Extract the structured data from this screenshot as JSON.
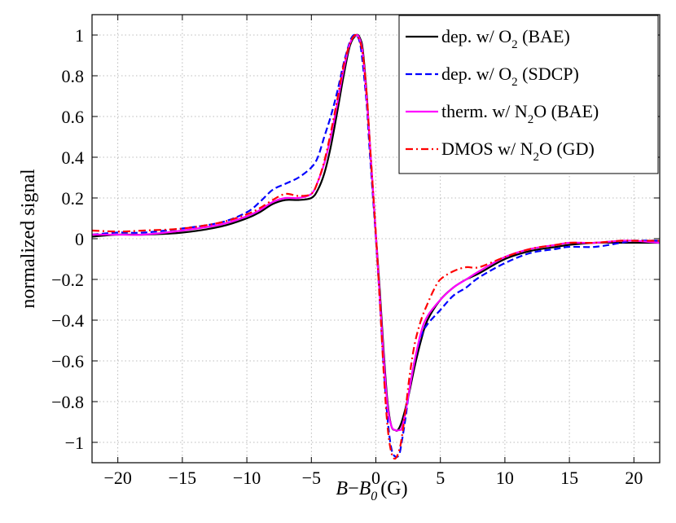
{
  "chart_data": {
    "type": "line",
    "xlabel": {
      "italic_main": "B",
      "minus": "−",
      "italic_base": "B",
      "italic_sub": "0",
      "unit": "(G)"
    },
    "ylabel": "normalized signal",
    "xlim": [
      -22,
      22
    ],
    "ylim": [
      -1.1,
      1.1
    ],
    "xticks": [
      -20,
      -15,
      -10,
      -5,
      0,
      5,
      10,
      15,
      20
    ],
    "xtick_labels": [
      "−20",
      "−15",
      "−10",
      "−5",
      "0",
      "5",
      "10",
      "15",
      "20"
    ],
    "yticks": [
      -1,
      -0.8,
      -0.6,
      -0.4,
      -0.2,
      0,
      0.2,
      0.4,
      0.6,
      0.8,
      1
    ],
    "ytick_labels": [
      "−1",
      "−0.8",
      "−0.6",
      "−0.4",
      "−0.2",
      "0",
      "0.2",
      "0.4",
      "0.6",
      "0.8",
      "1"
    ],
    "grid": true,
    "legend_position": "top-right",
    "series": [
      {
        "name": "dep. w/ O2 (BAE)",
        "legend": {
          "pre": "dep. w/ O",
          "sub": "2",
          "post": " (BAE)"
        },
        "color": "#000000",
        "dash": "solid",
        "x": [
          -22,
          -20,
          -18,
          -15,
          -12,
          -10,
          -9,
          -8,
          -7,
          -6,
          -5,
          -4.5,
          -4,
          -3.5,
          -3,
          -2.5,
          -2,
          -1.5,
          -1.2,
          -1,
          -0.7,
          -0.5,
          0,
          0.3,
          0.6,
          0.9,
          1.2,
          1.5,
          1.7,
          2,
          2.5,
          3,
          3.5,
          4,
          5,
          6,
          7,
          8,
          10,
          12,
          14,
          15,
          17,
          19,
          20,
          22
        ],
        "y": [
          0.01,
          0.02,
          0.02,
          0.03,
          0.06,
          0.1,
          0.13,
          0.17,
          0.19,
          0.19,
          0.2,
          0.24,
          0.32,
          0.45,
          0.62,
          0.8,
          0.95,
          1.0,
          0.98,
          0.92,
          0.7,
          0.5,
          0.02,
          -0.25,
          -0.55,
          -0.8,
          -0.92,
          -0.94,
          -0.94,
          -0.9,
          -0.78,
          -0.63,
          -0.5,
          -0.4,
          -0.3,
          -0.24,
          -0.2,
          -0.17,
          -0.1,
          -0.06,
          -0.04,
          -0.03,
          -0.02,
          -0.02,
          -0.02,
          -0.02
        ]
      },
      {
        "name": "dep. w/ O2 (SDCP)",
        "legend": {
          "pre": "dep. w/ O",
          "sub": "2",
          "post": " (SDCP)"
        },
        "color": "#0000ff",
        "dash": "dashed",
        "x": [
          -22,
          -20,
          -18,
          -15,
          -12,
          -10,
          -9,
          -8,
          -7,
          -6,
          -5,
          -4.5,
          -4,
          -3.5,
          -3,
          -2.5,
          -2,
          -1.7,
          -1.4,
          -1.2,
          -1,
          -0.7,
          -0.5,
          0,
          0.3,
          0.6,
          0.9,
          1.2,
          1.5,
          1.8,
          2,
          2.3,
          2.6,
          3,
          3.5,
          4,
          5,
          6,
          7,
          8,
          10,
          12,
          14,
          15,
          17,
          19,
          20,
          22
        ],
        "y": [
          0.02,
          0.03,
          0.03,
          0.05,
          0.08,
          0.13,
          0.18,
          0.24,
          0.27,
          0.3,
          0.35,
          0.4,
          0.5,
          0.6,
          0.72,
          0.86,
          0.97,
          1.0,
          0.99,
          0.95,
          0.85,
          0.65,
          0.45,
          0.0,
          -0.3,
          -0.62,
          -0.88,
          -1.03,
          -1.07,
          -1.06,
          -1.0,
          -0.88,
          -0.74,
          -0.6,
          -0.48,
          -0.42,
          -0.35,
          -0.28,
          -0.24,
          -0.19,
          -0.12,
          -0.07,
          -0.05,
          -0.04,
          -0.04,
          -0.02,
          -0.01,
          -0.01
        ]
      },
      {
        "name": "therm. w/ N2O (BAE)",
        "legend": {
          "pre": "therm. w/ N",
          "sub": "2",
          "post": "O (BAE)"
        },
        "color": "#ff00ff",
        "dash": "solid",
        "x": [
          -22,
          -20,
          -18,
          -15,
          -12,
          -10,
          -9,
          -8,
          -7,
          -6,
          -5,
          -4.5,
          -4,
          -3.5,
          -3,
          -2.5,
          -2,
          -1.5,
          -1.2,
          -1,
          -0.7,
          -0.5,
          0,
          0.3,
          0.6,
          0.9,
          1.2,
          1.5,
          1.8,
          2,
          2.3,
          2.6,
          3,
          3.5,
          4,
          5,
          6,
          7,
          8,
          10,
          12,
          14,
          15,
          17,
          19,
          20,
          22
        ],
        "y": [
          0.02,
          0.02,
          0.02,
          0.04,
          0.07,
          0.11,
          0.14,
          0.18,
          0.2,
          0.2,
          0.22,
          0.28,
          0.37,
          0.5,
          0.66,
          0.83,
          0.96,
          1.0,
          0.97,
          0.9,
          0.68,
          0.5,
          0.02,
          -0.28,
          -0.58,
          -0.82,
          -0.92,
          -0.94,
          -0.94,
          -0.93,
          -0.85,
          -0.74,
          -0.6,
          -0.46,
          -0.38,
          -0.3,
          -0.24,
          -0.2,
          -0.16,
          -0.09,
          -0.05,
          -0.03,
          -0.02,
          -0.02,
          -0.01,
          -0.01,
          -0.02
        ]
      },
      {
        "name": "DMOS w/ N2O (GD)",
        "legend": {
          "pre": "DMOS w/ N",
          "sub": "2",
          "post": "O (GD)"
        },
        "color": "#ff0000",
        "dash": "dashdot",
        "x": [
          -22,
          -20,
          -18,
          -15,
          -12,
          -10,
          -9,
          -8,
          -7,
          -6,
          -5,
          -4.5,
          -4,
          -3.5,
          -3,
          -2.5,
          -2,
          -1.6,
          -1.3,
          -1,
          -0.7,
          -0.5,
          0,
          0.3,
          0.6,
          0.9,
          1.2,
          1.5,
          1.8,
          2,
          2.3,
          2.6,
          3,
          3.5,
          4,
          4.5,
          5,
          6,
          7,
          8,
          10,
          12,
          14,
          15,
          17,
          19,
          20,
          22
        ],
        "y": [
          0.04,
          0.035,
          0.04,
          0.05,
          0.08,
          0.12,
          0.15,
          0.19,
          0.22,
          0.21,
          0.22,
          0.28,
          0.38,
          0.52,
          0.68,
          0.85,
          0.96,
          1.0,
          0.98,
          0.9,
          0.7,
          0.5,
          0.02,
          -0.3,
          -0.65,
          -0.92,
          -1.05,
          -1.08,
          -1.04,
          -0.98,
          -0.84,
          -0.68,
          -0.52,
          -0.4,
          -0.32,
          -0.25,
          -0.2,
          -0.16,
          -0.14,
          -0.14,
          -0.09,
          -0.05,
          -0.03,
          -0.02,
          -0.02,
          -0.01,
          -0.01,
          -0.01
        ]
      }
    ]
  }
}
